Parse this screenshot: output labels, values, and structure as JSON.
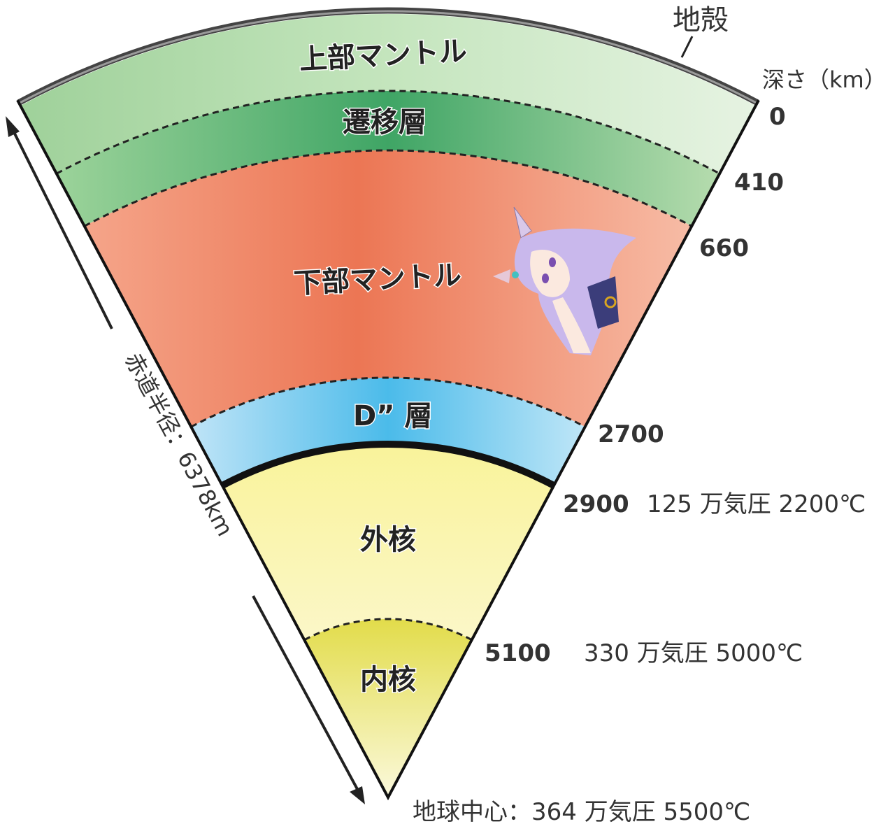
{
  "layers": {
    "crust": "地殻",
    "upper_mantle": "上部マントル",
    "transition_zone": "遷移層",
    "lower_mantle": "下部マントル",
    "d_double_prime": "D” 層",
    "outer_core": "外核",
    "inner_core": "内核"
  },
  "depth_header": "深さ（km）",
  "depths": [
    "0",
    "410",
    "660",
    "2700",
    "2900",
    "5100"
  ],
  "conditions": {
    "at_2900": "125 万気圧 2200℃",
    "at_5100": "330 万気圧 5000℃",
    "center": "地球中心：364 万気圧 5500℃"
  },
  "radius_label": "赤道半径：6378km",
  "colors": {
    "upper_mantle": "#b9dfb0",
    "transition_zone": "#55b070",
    "lower_mantle": "#ee7c5c",
    "d_double_prime": "#5cc0ea",
    "outer_core": "#f6ef86",
    "inner_core": "#e6e05a",
    "crust": "#555555"
  }
}
